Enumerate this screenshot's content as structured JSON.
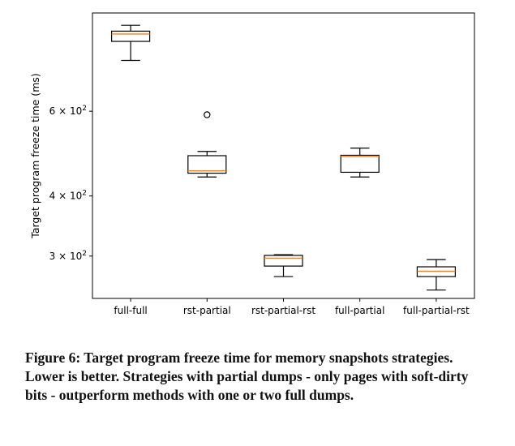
{
  "chart_data": {
    "type": "box",
    "ylabel": "Target program freeze time (ms)",
    "xlabel": "",
    "yscale": "log",
    "ylim": [
      245,
      960
    ],
    "categories": [
      "full-full",
      "rst-partial",
      "rst-partial-rst",
      "full-partial",
      "full-partial-rst"
    ],
    "ytick_labels": [
      {
        "value": 300,
        "base": "3 × 10",
        "exp": "2"
      },
      {
        "value": 400,
        "base": "4 × 10",
        "exp": "2"
      },
      {
        "value": 600,
        "base": "6 × 10",
        "exp": "2"
      }
    ],
    "boxes": [
      {
        "whislo": 765,
        "q1": 838,
        "med": 868,
        "q3": 880,
        "whishi": 905,
        "fliers": []
      },
      {
        "whislo": 438,
        "q1": 446,
        "med": 451,
        "q3": 485,
        "whishi": 495,
        "fliers": [
          590
        ]
      },
      {
        "whislo": 272,
        "q1": 286,
        "med": 297,
        "q3": 301,
        "whishi": 302,
        "fliers": []
      },
      {
        "whislo": 438,
        "q1": 448,
        "med": 483,
        "q3": 486,
        "whishi": 503,
        "fliers": []
      },
      {
        "whislo": 255,
        "q1": 272,
        "med": 279,
        "q3": 285,
        "whishi": 295,
        "fliers": []
      }
    ],
    "colors": {
      "box": "#000000",
      "median": "#ff7f0e",
      "flier": "#000000"
    }
  },
  "caption": "Figure 6: Target program freeze time for memory snapshots strategies. Lower is better. Strategies with partial dumps - only pages with soft-dirty bits - outperform methods with one or two full dumps."
}
